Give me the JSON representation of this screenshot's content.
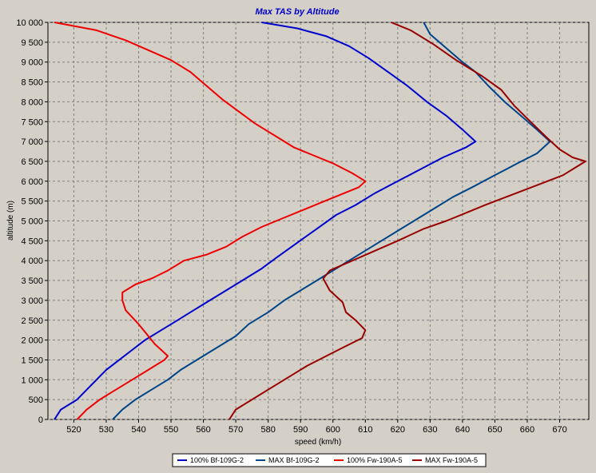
{
  "chart_data": {
    "type": "line",
    "title": "Max TAS by Altitude",
    "title_color": "#0000cc",
    "xlabel": "speed (km/h)",
    "ylabel": "altitude (m)",
    "xlim": [
      512,
      679
    ],
    "ylim": [
      0,
      10000
    ],
    "x_ticks": [
      520,
      530,
      540,
      550,
      560,
      570,
      580,
      590,
      600,
      610,
      620,
      630,
      640,
      650,
      660,
      670
    ],
    "y_ticks": [
      {
        "value": 0,
        "label": "0"
      },
      {
        "value": 500,
        "label": "500"
      },
      {
        "value": 1000,
        "label": "1 000"
      },
      {
        "value": 1500,
        "label": "1 500"
      },
      {
        "value": 2000,
        "label": "2 000"
      },
      {
        "value": 2500,
        "label": "2 500"
      },
      {
        "value": 3000,
        "label": "3 000"
      },
      {
        "value": 3500,
        "label": "3 500"
      },
      {
        "value": 4000,
        "label": "4 000"
      },
      {
        "value": 4500,
        "label": "4 500"
      },
      {
        "value": 5000,
        "label": "5 000"
      },
      {
        "value": 5500,
        "label": "5 500"
      },
      {
        "value": 6000,
        "label": "6 000"
      },
      {
        "value": 6500,
        "label": "6 500"
      },
      {
        "value": 7000,
        "label": "7 000"
      },
      {
        "value": 7500,
        "label": "7 500"
      },
      {
        "value": 8000,
        "label": "8 000"
      },
      {
        "value": 8500,
        "label": "8 500"
      },
      {
        "value": 9000,
        "label": "9 000"
      },
      {
        "value": 9500,
        "label": "9 500"
      },
      {
        "value": 10000,
        "label": "10 000"
      }
    ],
    "grid": true,
    "legend_position": "bottom-center",
    "series": [
      {
        "name": "100% Bf-109G-2",
        "color": "#0000cc",
        "points": [
          [
            514,
            0
          ],
          [
            516,
            250
          ],
          [
            521,
            500
          ],
          [
            524,
            750
          ],
          [
            527,
            1000
          ],
          [
            530,
            1250
          ],
          [
            534,
            1500
          ],
          [
            538,
            1750
          ],
          [
            542,
            2000
          ],
          [
            547,
            2250
          ],
          [
            552,
            2500
          ],
          [
            557,
            2750
          ],
          [
            562,
            3000
          ],
          [
            567,
            3250
          ],
          [
            572,
            3500
          ],
          [
            578,
            3800
          ],
          [
            583,
            4100
          ],
          [
            589,
            4450
          ],
          [
            595,
            4800
          ],
          [
            601,
            5150
          ],
          [
            607,
            5400
          ],
          [
            613,
            5700
          ],
          [
            620,
            6000
          ],
          [
            627,
            6300
          ],
          [
            634,
            6600
          ],
          [
            641,
            6850
          ],
          [
            644,
            7000
          ],
          [
            640,
            7300
          ],
          [
            635,
            7650
          ],
          [
            629,
            8000
          ],
          [
            623,
            8400
          ],
          [
            617,
            8750
          ],
          [
            611,
            9100
          ],
          [
            605,
            9400
          ],
          [
            598,
            9650
          ],
          [
            589,
            9850
          ],
          [
            578,
            10000
          ]
        ]
      },
      {
        "name": "MAX Bf-109G-2",
        "color": "#004488",
        "points": [
          [
            532,
            0
          ],
          [
            535,
            250
          ],
          [
            539,
            500
          ],
          [
            544,
            750
          ],
          [
            549,
            1000
          ],
          [
            553,
            1250
          ],
          [
            558,
            1500
          ],
          [
            564,
            1800
          ],
          [
            570,
            2100
          ],
          [
            574,
            2400
          ],
          [
            580,
            2700
          ],
          [
            585,
            3000
          ],
          [
            590,
            3250
          ],
          [
            595,
            3500
          ],
          [
            601,
            3800
          ],
          [
            607,
            4100
          ],
          [
            613,
            4400
          ],
          [
            619,
            4700
          ],
          [
            625,
            5000
          ],
          [
            631,
            5300
          ],
          [
            637,
            5600
          ],
          [
            643,
            5850
          ],
          [
            650,
            6150
          ],
          [
            657,
            6450
          ],
          [
            663,
            6700
          ],
          [
            667,
            7000
          ],
          [
            663,
            7300
          ],
          [
            658,
            7650
          ],
          [
            653,
            8000
          ],
          [
            648,
            8400
          ],
          [
            644,
            8750
          ],
          [
            640,
            9000
          ],
          [
            635,
            9350
          ],
          [
            630,
            9700
          ],
          [
            628,
            10000
          ]
        ]
      },
      {
        "name": "100% Fw-190A-5",
        "color": "#ee0000",
        "points": [
          [
            521,
            0
          ],
          [
            524,
            250
          ],
          [
            528,
            500
          ],
          [
            533,
            750
          ],
          [
            538,
            1000
          ],
          [
            543,
            1250
          ],
          [
            548,
            1500
          ],
          [
            549,
            1600
          ],
          [
            545,
            1900
          ],
          [
            543,
            2100
          ],
          [
            540,
            2400
          ],
          [
            536,
            2750
          ],
          [
            535,
            3000
          ],
          [
            535,
            3200
          ],
          [
            539,
            3400
          ],
          [
            544,
            3550
          ],
          [
            549,
            3750
          ],
          [
            554,
            4000
          ],
          [
            561,
            4150
          ],
          [
            567,
            4350
          ],
          [
            572,
            4600
          ],
          [
            578,
            4850
          ],
          [
            584,
            5050
          ],
          [
            590,
            5250
          ],
          [
            596,
            5450
          ],
          [
            602,
            5650
          ],
          [
            608,
            5850
          ],
          [
            610,
            6000
          ],
          [
            606,
            6200
          ],
          [
            600,
            6450
          ],
          [
            594,
            6650
          ],
          [
            588,
            6850
          ],
          [
            582,
            7150
          ],
          [
            576,
            7450
          ],
          [
            571,
            7750
          ],
          [
            566,
            8050
          ],
          [
            561,
            8400
          ],
          [
            556,
            8750
          ],
          [
            550,
            9050
          ],
          [
            543,
            9300
          ],
          [
            536,
            9550
          ],
          [
            527,
            9800
          ],
          [
            514,
            10000
          ]
        ]
      },
      {
        "name": "MAX Fw-190A-5",
        "color": "#990000",
        "points": [
          [
            568,
            0
          ],
          [
            570,
            250
          ],
          [
            575,
            500
          ],
          [
            581,
            800
          ],
          [
            587,
            1100
          ],
          [
            592,
            1350
          ],
          [
            598,
            1600
          ],
          [
            604,
            1850
          ],
          [
            609,
            2050
          ],
          [
            610,
            2250
          ],
          [
            607,
            2500
          ],
          [
            604,
            2700
          ],
          [
            603,
            2950
          ],
          [
            599,
            3250
          ],
          [
            597,
            3550
          ],
          [
            599,
            3750
          ],
          [
            606,
            4000
          ],
          [
            613,
            4250
          ],
          [
            620,
            4500
          ],
          [
            628,
            4800
          ],
          [
            635,
            5000
          ],
          [
            641,
            5200
          ],
          [
            647,
            5400
          ],
          [
            655,
            5650
          ],
          [
            663,
            5900
          ],
          [
            671,
            6150
          ],
          [
            676,
            6400
          ],
          [
            678,
            6500
          ],
          [
            674,
            6600
          ],
          [
            670,
            6800
          ],
          [
            666,
            7100
          ],
          [
            661,
            7500
          ],
          [
            656,
            7900
          ],
          [
            652,
            8300
          ],
          [
            646,
            8650
          ],
          [
            638,
            9050
          ],
          [
            631,
            9450
          ],
          [
            624,
            9800
          ],
          [
            618,
            10000
          ]
        ]
      }
    ]
  }
}
